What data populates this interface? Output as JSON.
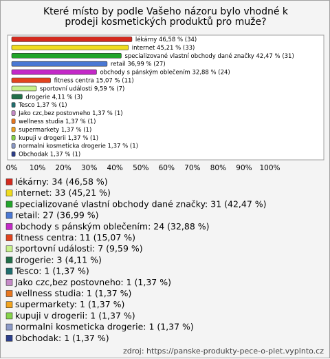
{
  "chart_data": {
    "type": "bar",
    "title": "Které místo by podle Vašeho názoru bylo vhodné k prodeji kosmetických produktů pro muže?",
    "orientation": "horizontal",
    "categories": [
      "lékárny",
      "internet",
      "specializované vlastní obchody dané značky",
      "retail",
      "obchody s pánským oblečením",
      "fitness centra",
      "sportovní události",
      "drogerie",
      "Tesco",
      "Jako czc,bez postovneho",
      "wellness studia",
      "supermarkety",
      "kupuji v drogerii",
      "normalni kosmeticka drogerie",
      "Obchodak"
    ],
    "values": [
      46.58,
      45.21,
      42.47,
      36.99,
      32.88,
      15.07,
      9.59,
      4.11,
      1.37,
      1.37,
      1.37,
      1.37,
      1.37,
      1.37,
      1.37
    ],
    "value_labels": [
      "lékárny 46,58 % (34)",
      "internet 45,21 % (33)",
      "specializované vlastní obchody dané značky 42,47 % (31)",
      "retail 36,99 % (27)",
      "obchody s pánským oblečením 32,88 % (24)",
      "fitness centra 15,07 % (11)",
      "sportovní události 9,59 % (7)",
      "drogerie 4,11 % (3)",
      "Tesco 1,37 % (1)",
      "Jako czc,bez postovneho 1,37 % (1)",
      "wellness studia 1,37 % (1)",
      "supermarkety 1,37 % (1)",
      "kupuji v drogerii 1,37 % (1)",
      "normalni kosmeticka drogerie 1,37 % (1)",
      "Obchodak 1,37 % (1)"
    ],
    "legend_labels": [
      "lékárny: 34 (46,58 %)",
      "internet: 33 (45,21 %)",
      "specializované vlastní obchody dané značky: 31 (42,47 %)",
      "retail: 27 (36,99 %)",
      "obchody s pánským oblečením: 24 (32,88 %)",
      "fitness centra: 11 (15,07 %)",
      "sportovní události: 7 (9,59 %)",
      "drogerie: 3 (4,11 %)",
      "Tesco: 1 (1,37 %)",
      "Jako czc,bez postovneho: 1 (1,37 %)",
      "wellness studia: 1 (1,37 %)",
      "supermarkety: 1 (1,37 %)",
      "kupuji v drogerii: 1 (1,37 %)",
      "normalni kosmeticka drogerie: 1 (1,37 %)",
      "Obchodak: 1 (1,37 %)"
    ],
    "colors": [
      "#d42a1e",
      "#f0dc1e",
      "#22a52a",
      "#4a78d4",
      "#c428c8",
      "#e2431e",
      "#c6f08a",
      "#22704a",
      "#1f6f6f",
      "#c68ac8",
      "#e8761e",
      "#f2a41e",
      "#86d44a",
      "#8c9ac8",
      "#2c3e8c"
    ],
    "xlim": [
      0,
      100
    ],
    "xticks": [
      {
        "value": 0,
        "label": "0%"
      },
      {
        "value": 10,
        "label": "10%"
      },
      {
        "value": 20,
        "label": "20%"
      },
      {
        "value": 30,
        "label": "30%"
      },
      {
        "value": 40,
        "label": "40%"
      },
      {
        "value": 50,
        "label": "50%"
      },
      {
        "value": 60,
        "label": "60%"
      },
      {
        "value": 70,
        "label": "70%"
      },
      {
        "value": 80,
        "label": "80%"
      },
      {
        "value": 90,
        "label": "90%"
      },
      {
        "value": 100,
        "label": "100%"
      }
    ],
    "grid": false,
    "source": "zdroj: https://panske-produkty-pece-o-plet.vyplnto.cz"
  }
}
